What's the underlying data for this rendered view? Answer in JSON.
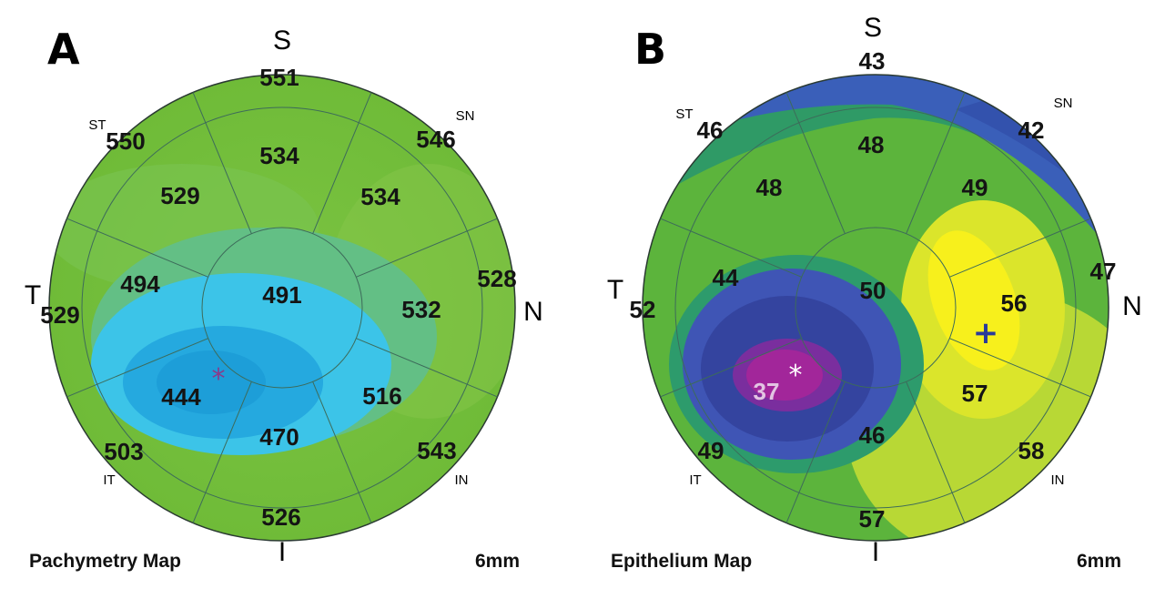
{
  "panels": [
    {
      "letter": "A",
      "caption": "Pachymetry Map",
      "scale": "6mm",
      "directions": {
        "superior": "S",
        "inferior": "I",
        "temporal": "T",
        "nasal": "N"
      },
      "quadrant_labels": {
        "st": "ST",
        "sn": "SN",
        "it": "IT",
        "in": "IN"
      },
      "values": {
        "center": "491",
        "mid_s": "534",
        "mid_sn": "534",
        "mid_n": "532",
        "mid_in": "516",
        "mid_i": "470",
        "mid_it": "444",
        "mid_t": "494",
        "mid_st": "529",
        "outer_s": "551",
        "outer_sn": "546",
        "outer_n": "528",
        "outer_in": "543",
        "outer_i": "526",
        "outer_it": "503",
        "outer_t": "529",
        "outer_st": "550"
      },
      "marker": "*",
      "colors": {
        "base": "#74bf3c",
        "mid": "#5fbf86",
        "thin": "#3fc4e6",
        "thinnest": "#22a6dc"
      }
    },
    {
      "letter": "B",
      "caption": "Epithelium Map",
      "scale": "6mm",
      "directions": {
        "superior": "S",
        "inferior": "I",
        "temporal": "T",
        "nasal": "N"
      },
      "quadrant_labels": {
        "st": "ST",
        "sn": "SN",
        "it": "IT",
        "in": "IN"
      },
      "values": {
        "center": "50",
        "mid_s": "48",
        "mid_sn": "49",
        "mid_n": "56",
        "mid_in": "57",
        "mid_i": "46",
        "mid_it": "37",
        "mid_t": "44",
        "mid_st": "48",
        "outer_s": "43",
        "outer_sn": "42",
        "outer_n": "47",
        "outer_in": "58",
        "outer_i": "57",
        "outer_it": "49",
        "outer_t": "52",
        "outer_st": "46"
      },
      "marker": "*",
      "marker_plus": "+",
      "colors": {
        "base": "#5bb13a",
        "blue": "#3558b8",
        "darkblue": "#2b3f9a",
        "purple": "#9b2a9a",
        "yellow": "#f4ee1a",
        "teal": "#2c9a6a"
      }
    }
  ]
}
